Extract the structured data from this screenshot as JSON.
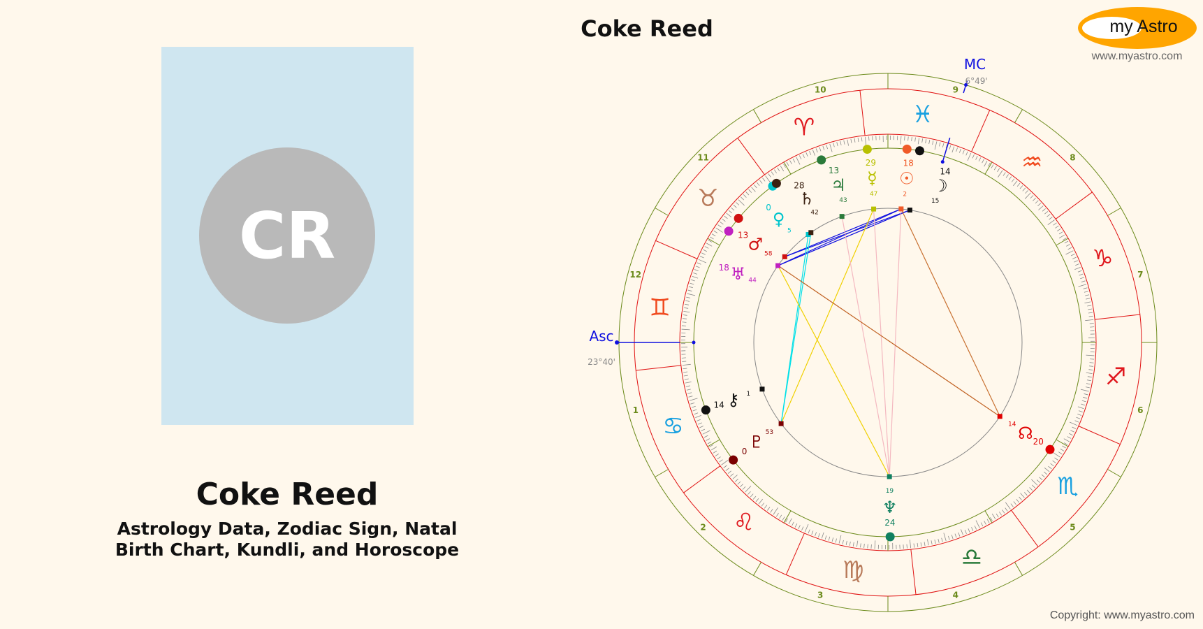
{
  "profile": {
    "initials": "CR",
    "name": "Coke Reed",
    "subtitle_line1": "Astrology Data, Zodiac Sign, Natal",
    "subtitle_line2": "Birth Chart, Kundli, and Horoscope"
  },
  "chart_title": "Coke Reed",
  "logo": {
    "text": "my Astro",
    "site": "www.myastro.com",
    "color": "#ffa500"
  },
  "copyright": "Copyright: www.myastro.com",
  "angles": {
    "asc": {
      "label": "Asc",
      "value": "23°40'",
      "sign": 2,
      "deg": 23,
      "min": 40
    },
    "mc": {
      "label": "MC",
      "value": "6°49'",
      "sign": 11,
      "deg": 6,
      "min": 49
    }
  },
  "signs": [
    {
      "name": "aries",
      "glyph": "♈",
      "color": "#e0181e"
    },
    {
      "name": "taurus",
      "glyph": "♉",
      "color": "#b87a5a"
    },
    {
      "name": "gemini",
      "glyph": "♊",
      "color": "#f04a1e"
    },
    {
      "name": "cancer",
      "glyph": "♋",
      "color": "#18a0e0"
    },
    {
      "name": "leo",
      "glyph": "♌",
      "color": "#e0181e"
    },
    {
      "name": "virgo",
      "glyph": "♍",
      "color": "#b87a5a"
    },
    {
      "name": "libra",
      "glyph": "♎",
      "color": "#2a7a3a"
    },
    {
      "name": "scorpio",
      "glyph": "♏",
      "color": "#18a0e0"
    },
    {
      "name": "sagittarius",
      "glyph": "♐",
      "color": "#e0181e"
    },
    {
      "name": "capricorn",
      "glyph": "♑",
      "color": "#e0181e"
    },
    {
      "name": "aquarius",
      "glyph": "♒",
      "color": "#f04a1e"
    },
    {
      "name": "pisces",
      "glyph": "♓",
      "color": "#18a0e0"
    }
  ],
  "house_numbers": [
    "1",
    "2",
    "3",
    "4",
    "5",
    "6",
    "7",
    "8",
    "9",
    "10",
    "11",
    "12"
  ],
  "planets": [
    {
      "id": "sun",
      "glyph": "☉",
      "sign": 11,
      "deg": 18,
      "min": 2,
      "deg_label": "18",
      "min_label": "2",
      "color": "#f05a28"
    },
    {
      "id": "moon",
      "glyph": "☽",
      "sign": 11,
      "deg": 14,
      "min": 15,
      "deg_label": "14",
      "min_label": "15",
      "color": "#111111"
    },
    {
      "id": "mercury",
      "glyph": "☿",
      "sign": 11,
      "deg": 29,
      "min": 47,
      "deg_label": "29",
      "min_label": "47",
      "color": "#b8c000"
    },
    {
      "id": "venus",
      "glyph": "♀",
      "sign": 1,
      "deg": 0,
      "min": 5,
      "deg_label": "0",
      "min_label": "5",
      "color": "#00c4cc"
    },
    {
      "id": "mars",
      "glyph": "♂",
      "sign": 1,
      "deg": 13,
      "min": 58,
      "deg_label": "13",
      "min_label": "58",
      "color": "#d01010"
    },
    {
      "id": "jupiter",
      "glyph": "♃",
      "sign": 0,
      "deg": 13,
      "min": 43,
      "deg_label": "13",
      "min_label": "43",
      "color": "#2a7a3a"
    },
    {
      "id": "saturn",
      "glyph": "♄",
      "sign": 0,
      "deg": 28,
      "min": 42,
      "deg_label": "28",
      "min_label": "42",
      "color": "#3a2010"
    },
    {
      "id": "uranus",
      "glyph": "♅",
      "sign": 1,
      "deg": 18,
      "min": 44,
      "deg_label": "18",
      "min_label": "44",
      "color": "#c020c0"
    },
    {
      "id": "neptune",
      "glyph": "♆",
      "sign": 5,
      "deg": 24,
      "min": 19,
      "deg_label": "24",
      "min_label": "19",
      "color": "#108060"
    },
    {
      "id": "pluto",
      "glyph": "♇",
      "sign": 4,
      "deg": 0,
      "min": 53,
      "deg_label": "0",
      "min_label": "53",
      "color": "#7a0000"
    },
    {
      "id": "chiron",
      "glyph": "⚷",
      "sign": 3,
      "deg": 14,
      "min": 1,
      "deg_label": "14",
      "min_label": "1",
      "color": "#111111"
    },
    {
      "id": "node",
      "glyph": "☊",
      "sign": 7,
      "deg": 20,
      "min": 14,
      "deg_label": "20",
      "min_label": "14",
      "color": "#e00000"
    }
  ],
  "aspects": [
    {
      "a": "uranus",
      "b": "sun",
      "color": "#1010e0"
    },
    {
      "a": "uranus",
      "b": "moon",
      "color": "#1010e0"
    },
    {
      "a": "mars",
      "b": "sun",
      "color": "#1010e0"
    },
    {
      "a": "mars",
      "b": "moon",
      "color": "#1010e0"
    },
    {
      "a": "venus",
      "b": "pluto",
      "color": "#00e0e8"
    },
    {
      "a": "saturn",
      "b": "pluto",
      "color": "#00e0e8"
    },
    {
      "a": "mercury",
      "b": "pluto",
      "color": "#f0d000"
    },
    {
      "a": "uranus",
      "b": "neptune",
      "color": "#f0d000"
    },
    {
      "a": "jupiter",
      "b": "neptune",
      "color": "#f4b8c0"
    },
    {
      "a": "sun",
      "b": "neptune",
      "color": "#f4b8c0"
    },
    {
      "a": "mercury",
      "b": "neptune",
      "color": "#f4b8c0"
    },
    {
      "a": "uranus",
      "b": "node",
      "color": "#c06020"
    },
    {
      "a": "sun",
      "b": "node",
      "color": "#c87030"
    }
  ]
}
